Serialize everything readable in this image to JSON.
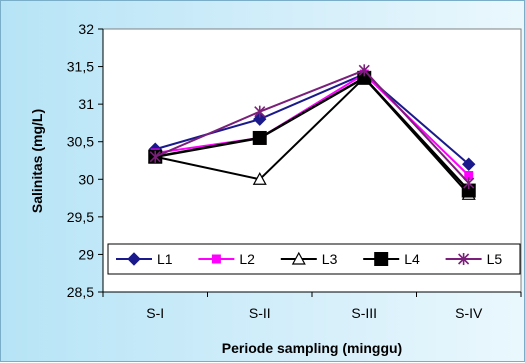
{
  "chart_data": {
    "type": "line",
    "title": "",
    "xlabel": "Periode sampling (minggu)",
    "ylabel": "Salinitas (mg/L)",
    "categories": [
      "S-I",
      "S-II",
      "S-III",
      "S-IV"
    ],
    "ylim": [
      28.5,
      32
    ],
    "yticks": [
      {
        "value": 28.5,
        "label": "28,5"
      },
      {
        "value": 29,
        "label": "29"
      },
      {
        "value": 29.5,
        "label": "29,5"
      },
      {
        "value": 30,
        "label": "30"
      },
      {
        "value": 30.5,
        "label": "30,5"
      },
      {
        "value": 31,
        "label": "31"
      },
      {
        "value": 31.5,
        "label": "31,5"
      },
      {
        "value": 32,
        "label": "32"
      }
    ],
    "grid": false,
    "legend_position": "bottom-inside",
    "series": [
      {
        "name": "L1",
        "values": [
          30.4,
          30.8,
          31.4,
          30.2
        ],
        "color": "#1a1a8c",
        "marker": "diamond"
      },
      {
        "name": "L2",
        "values": [
          30.35,
          30.55,
          31.4,
          30.05
        ],
        "color": "#ff00ff",
        "marker": "square"
      },
      {
        "name": "L3",
        "values": [
          30.3,
          30.0,
          31.35,
          29.8
        ],
        "color": "#000000",
        "marker": "triangle-open"
      },
      {
        "name": "L4",
        "values": [
          30.3,
          30.55,
          31.35,
          29.85
        ],
        "color": "#000000",
        "marker": "square-large"
      },
      {
        "name": "L5",
        "values": [
          30.3,
          30.9,
          31.45,
          29.95
        ],
        "color": "#7a1f7a",
        "marker": "star"
      }
    ]
  }
}
